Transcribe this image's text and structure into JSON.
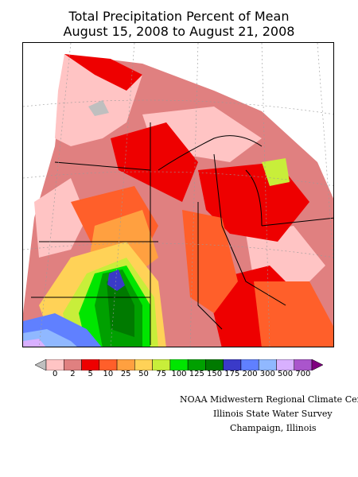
{
  "title_line1": "Total Precipitation Percent of Mean",
  "title_line2": "August 15, 2008 to August 21, 2008",
  "legend": {
    "labels": [
      "0",
      "2",
      "5",
      "10",
      "25",
      "50",
      "75",
      "100",
      "125",
      "150",
      "175",
      "200",
      "300",
      "500",
      "700"
    ],
    "colors": [
      "#bfbfbf",
      "#ffc4c4",
      "#e08080",
      "#ee0000",
      "#ff5f2a",
      "#ffa040",
      "#ffd257",
      "#c8ee3a",
      "#00e600",
      "#00a000",
      "#007a00",
      "#3a3ac8",
      "#6080ff",
      "#90b8ff",
      "#d8b0ff",
      "#aa55cc",
      "#800080"
    ]
  },
  "credits": {
    "line1": "NOAA Midwestern Regional Climate Cent",
    "line2": "Illinois State Water Survey",
    "line3": "Champaign, Illinois"
  }
}
